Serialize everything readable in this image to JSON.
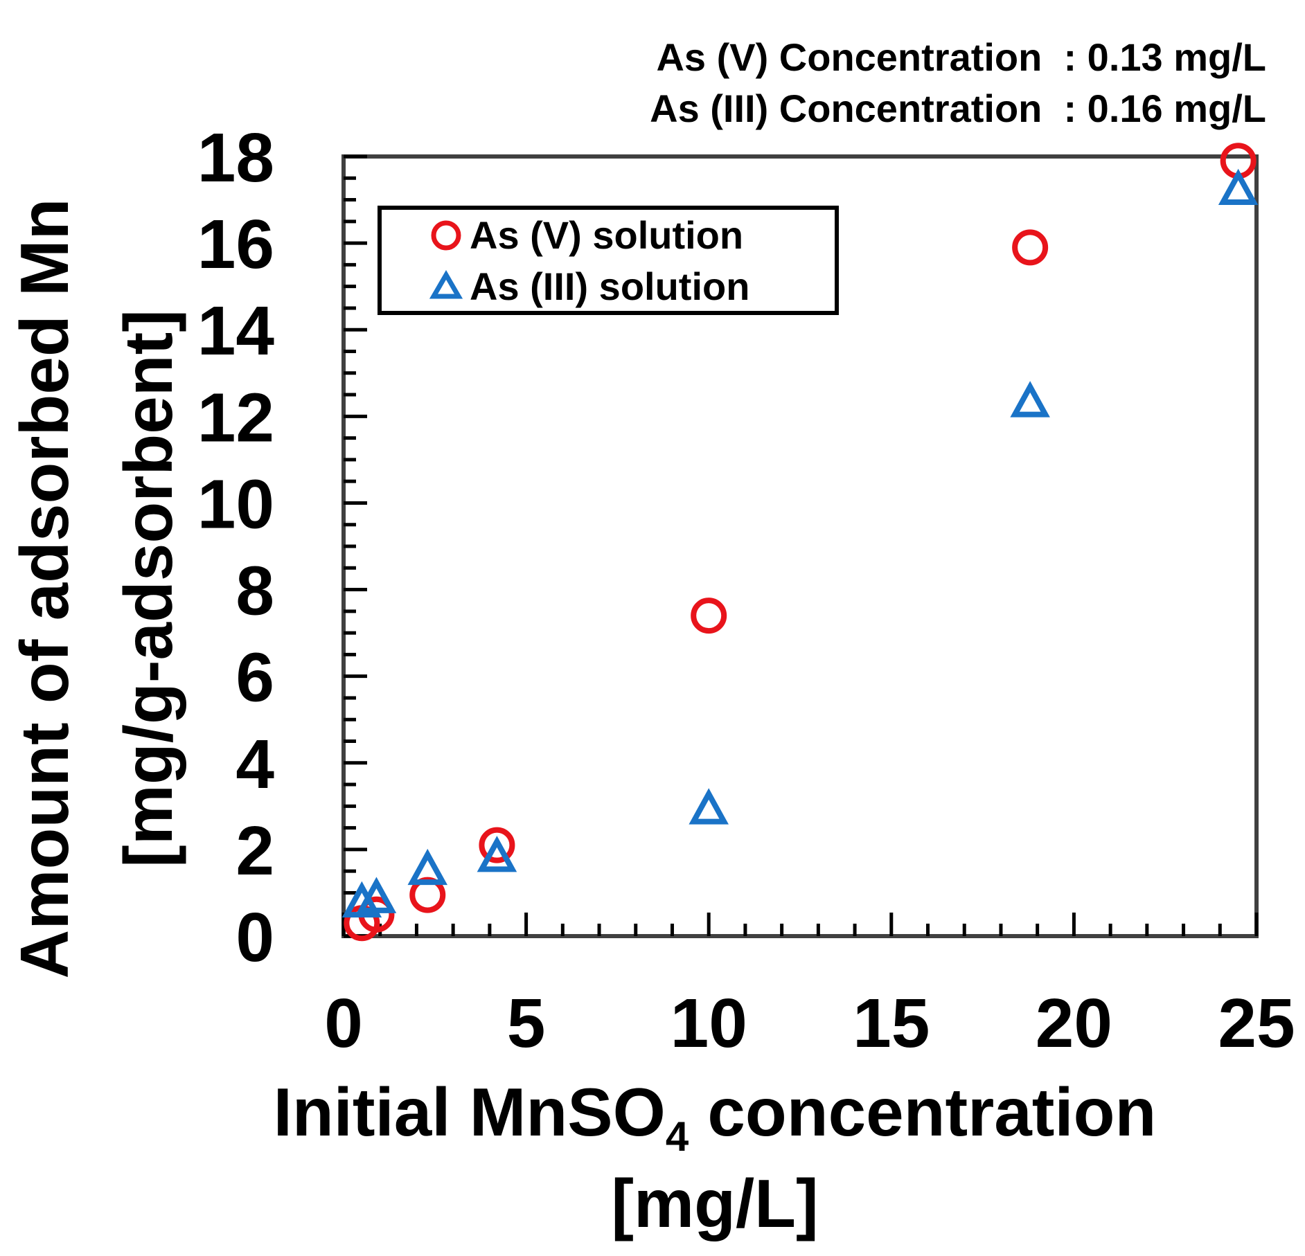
{
  "chart_data": {
    "type": "scatter",
    "annotations": [
      "As (V) Concentration  : 0.13 mg/L",
      "As (III) Concentration  : 0.16 mg/L"
    ],
    "xlabel": {
      "main": "Initial MnSO",
      "sub": "4",
      "tail": " concentration",
      "unit": "[mg/L]"
    },
    "ylabel": {
      "line1": "Amount of adsorbed Mn",
      "line2": "[mg/g-adsorbent]"
    },
    "xlim": [
      0,
      25
    ],
    "ylim": [
      0,
      18
    ],
    "xticks": [
      "0",
      "5",
      "10",
      "15",
      "20",
      "25"
    ],
    "yticks": [
      "0",
      "2",
      "4",
      "6",
      "8",
      "10",
      "12",
      "14",
      "16",
      "18"
    ],
    "legend_position": "top-left",
    "series": [
      {
        "name": "As (V) solution",
        "marker": "circle",
        "color": "#e8141b",
        "points": [
          [
            0.5,
            0.3
          ],
          [
            0.9,
            0.5
          ],
          [
            2.3,
            0.95
          ],
          [
            4.2,
            2.1
          ],
          [
            10.0,
            7.4
          ],
          [
            18.8,
            15.9
          ],
          [
            24.5,
            17.9
          ]
        ]
      },
      {
        "name": "As (III) solution",
        "marker": "triangle",
        "color": "#1a73c7",
        "points": [
          [
            0.5,
            0.75
          ],
          [
            0.9,
            0.85
          ],
          [
            2.3,
            1.5
          ],
          [
            4.2,
            1.8
          ],
          [
            10.0,
            2.9
          ],
          [
            18.8,
            12.3
          ],
          [
            24.5,
            17.2
          ]
        ]
      }
    ]
  }
}
